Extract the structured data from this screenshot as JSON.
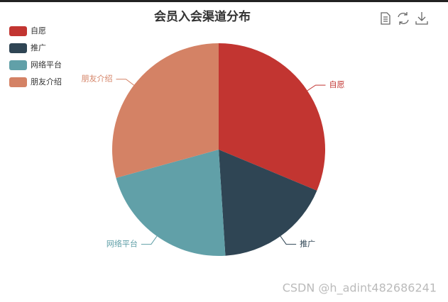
{
  "chart_data": {
    "type": "pie",
    "title": "会员入会渠道分布",
    "categories": [
      "自愿",
      "推广",
      "网络平台",
      "朋友介绍"
    ],
    "values": [
      31.3,
      17.7,
      21.7,
      29.3
    ],
    "colors": [
      "#c23531",
      "#2f4554",
      "#61a0a8",
      "#d48265"
    ],
    "legend": "top-left"
  },
  "watermark": "CSDN @h_adint482686241"
}
